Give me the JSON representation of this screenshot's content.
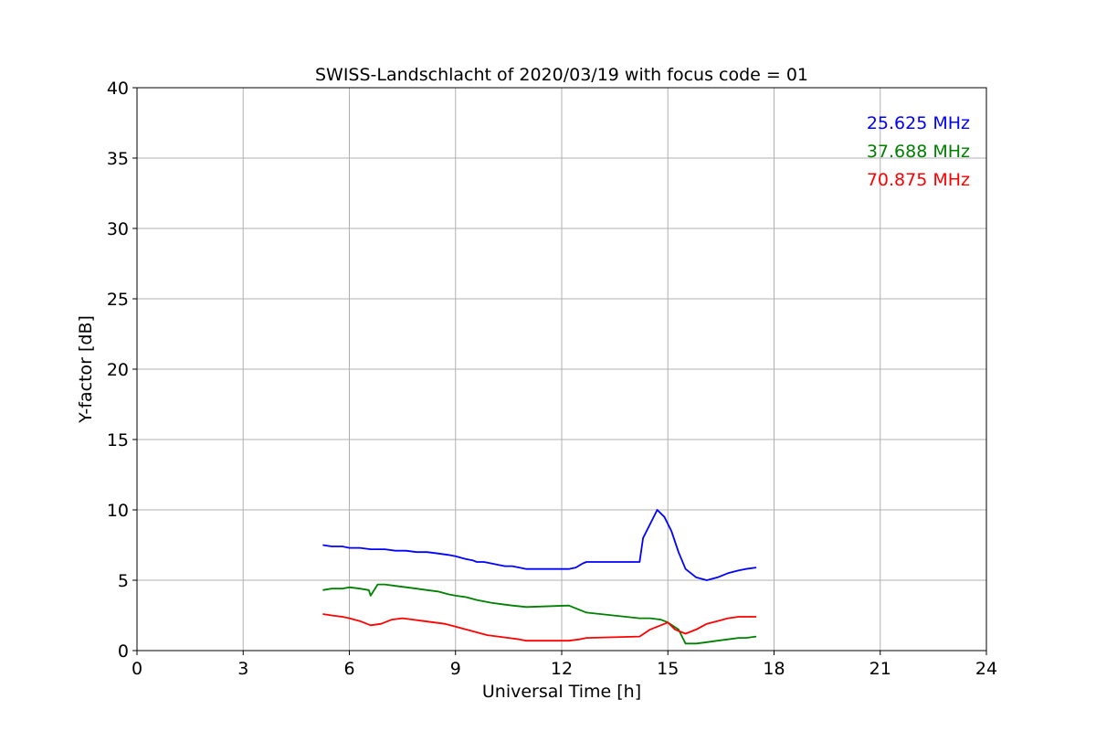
{
  "chart_data": {
    "type": "line",
    "title": "SWISS-Landschlacht of 2020/03/19 with focus code = 01",
    "xlabel": "Universal Time [h]",
    "ylabel": "Y-factor [dB]",
    "xlim": [
      0,
      24
    ],
    "ylim": [
      0,
      40
    ],
    "xticks": [
      0,
      3,
      6,
      9,
      12,
      15,
      18,
      21,
      24
    ],
    "yticks": [
      0,
      5,
      10,
      15,
      20,
      25,
      30,
      35,
      40
    ],
    "grid": true,
    "legend_position": "top-right",
    "series": [
      {
        "name": "25.625 MHz",
        "color": "#0000ff",
        "x": [
          5.25,
          5.5,
          5.8,
          6.0,
          6.3,
          6.6,
          6.8,
          7.0,
          7.3,
          7.6,
          7.9,
          8.2,
          8.5,
          8.8,
          9.0,
          9.3,
          9.5,
          9.6,
          9.8,
          10.0,
          10.2,
          10.4,
          10.6,
          10.8,
          11.0,
          12.2,
          12.4,
          12.6,
          12.7,
          14.2,
          14.3,
          14.5,
          14.7,
          14.9,
          15.1,
          15.3,
          15.5,
          15.8,
          16.1,
          16.4,
          16.7,
          17.0,
          17.2,
          17.5
        ],
        "values": [
          7.5,
          7.4,
          7.4,
          7.3,
          7.3,
          7.2,
          7.2,
          7.2,
          7.1,
          7.1,
          7.0,
          7.0,
          6.9,
          6.8,
          6.7,
          6.5,
          6.4,
          6.3,
          6.3,
          6.2,
          6.1,
          6.0,
          6.0,
          5.9,
          5.8,
          5.8,
          5.9,
          6.2,
          6.3,
          6.3,
          8.0,
          9.0,
          10.0,
          9.5,
          8.5,
          7.0,
          5.8,
          5.2,
          5.0,
          5.2,
          5.5,
          5.7,
          5.8,
          5.9
        ]
      },
      {
        "name": "37.688 MHz",
        "color": "#008000",
        "x": [
          5.25,
          5.5,
          5.8,
          6.0,
          6.3,
          6.55,
          6.6,
          6.8,
          7.0,
          7.3,
          7.6,
          7.9,
          8.2,
          8.5,
          8.8,
          9.0,
          9.3,
          9.6,
          9.8,
          10.0,
          10.3,
          10.6,
          11.0,
          12.2,
          12.4,
          12.7,
          14.2,
          14.5,
          14.8,
          15.0,
          15.3,
          15.5,
          15.8,
          16.1,
          16.4,
          16.7,
          17.0,
          17.2,
          17.5
        ],
        "values": [
          4.3,
          4.4,
          4.4,
          4.5,
          4.4,
          4.3,
          3.9,
          4.7,
          4.7,
          4.6,
          4.5,
          4.4,
          4.3,
          4.2,
          4.0,
          3.9,
          3.8,
          3.6,
          3.5,
          3.4,
          3.3,
          3.2,
          3.1,
          3.2,
          3.0,
          2.7,
          2.3,
          2.3,
          2.2,
          2.0,
          1.5,
          0.5,
          0.5,
          0.6,
          0.7,
          0.8,
          0.9,
          0.9,
          1.0
        ]
      },
      {
        "name": "70.875 MHz",
        "color": "#ff0000",
        "x": [
          5.25,
          5.5,
          5.8,
          6.0,
          6.3,
          6.6,
          6.9,
          7.2,
          7.5,
          7.8,
          8.1,
          8.4,
          8.7,
          9.0,
          9.3,
          9.6,
          9.9,
          10.2,
          10.5,
          10.8,
          11.0,
          12.2,
          12.5,
          12.7,
          14.2,
          14.5,
          14.8,
          15.0,
          15.2,
          15.5,
          15.8,
          16.1,
          16.4,
          16.7,
          17.0,
          17.2,
          17.5
        ],
        "values": [
          2.6,
          2.5,
          2.4,
          2.3,
          2.1,
          1.8,
          1.9,
          2.2,
          2.3,
          2.2,
          2.1,
          2.0,
          1.9,
          1.7,
          1.5,
          1.3,
          1.1,
          1.0,
          0.9,
          0.8,
          0.7,
          0.7,
          0.8,
          0.9,
          1.0,
          1.5,
          1.8,
          2.0,
          1.5,
          1.2,
          1.5,
          1.9,
          2.1,
          2.3,
          2.4,
          2.4,
          2.4
        ]
      }
    ]
  }
}
